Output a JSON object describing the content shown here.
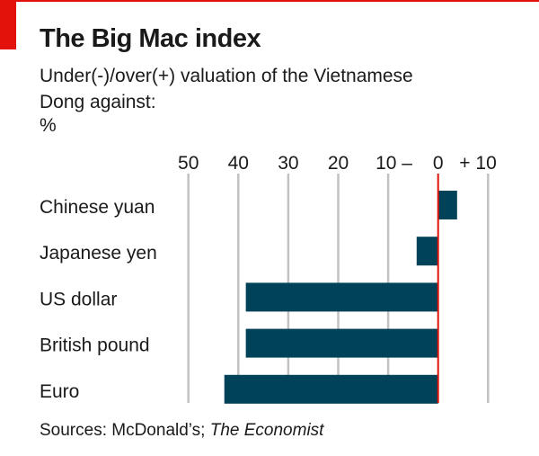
{
  "colors": {
    "accent_red": "#e3120b",
    "bar": "#004358",
    "grid": "#c2c2c2",
    "zero_line": "#e3120b",
    "text": "#1a1a1a"
  },
  "header": {
    "title": "The Big Mac index",
    "subtitle": "Under(-)/over(+) valuation of the Vietnamese Dong against:",
    "unit": "%"
  },
  "footer": {
    "sources_prefix": "Sources: McDonald’s; ",
    "sources_italic": "The Economist"
  },
  "chart_data": {
    "type": "bar",
    "orientation": "horizontal",
    "title": "The Big Mac index",
    "subtitle": "Under(-)/over(+) valuation of the Vietnamese Dong against:",
    "ylabel": "%",
    "xlabel": "",
    "categories": [
      "Chinese yuan",
      "Japanese yen",
      "US dollar",
      "British pound",
      "Euro"
    ],
    "values": [
      3.8,
      -4.3,
      -38.5,
      -38.5,
      -42.8
    ],
    "xlim": [
      -50,
      10
    ],
    "x_ticks": [
      -50,
      -40,
      -30,
      -20,
      -10,
      0,
      10
    ],
    "x_tick_labels": [
      "50",
      "40",
      "30",
      "20",
      "10 –",
      "0",
      "+ 10"
    ],
    "grid": true,
    "zero_line": true,
    "legend": "none"
  }
}
